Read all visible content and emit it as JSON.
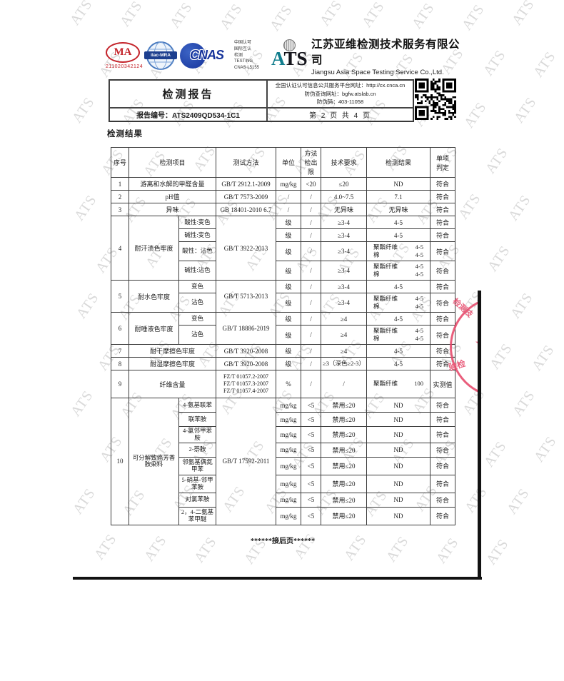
{
  "colors": {
    "stamp_red": "#e6486a",
    "cma_red": "#c4242b",
    "cnas_blue": "#16339b",
    "ats_teal": "#117d8d"
  },
  "header": {
    "cma_label": "MA",
    "cma_number": "211020342124",
    "ilac_label": "ilac-MRA",
    "cnas_label": "CNAS",
    "accreditation": "中国认可\n国际互认\n检测\nTESTING\nCNAS L5155",
    "ats_a": "A",
    "ats_ts": "TS",
    "company_cn": "江苏亚维检测技术服务有限公司",
    "company_en": "Jiangsu Asia Space Testing Service Co.,Ltd."
  },
  "report_box": {
    "title": "检测报告",
    "info_lines": "全国认证认可信息公共服务平台网址：http://cx.cnca.cn\n防伪查询网址：bgfw.atslab.cn\n防伪码：403-11058",
    "report_no_label": "报告编号：ATS2409QD534-1C1",
    "page_info": "第 2 页 共 4 页"
  },
  "section_title": "检测结果",
  "table": {
    "headers": {
      "no": "序号",
      "item": "检测项目",
      "method": "测试方法",
      "unit": "单位",
      "lod": "方法\n检出限",
      "req": "技术要求",
      "result": "检测结果",
      "verdict": "单项\n判定"
    },
    "rows": [
      {
        "no": "1",
        "item": "游离和水解的甲醛含量",
        "method": "GB/T 2912.1-2009",
        "unit": "mg/kg",
        "lod": "<20",
        "req": "≤20",
        "result": "ND",
        "verdict": "符合"
      },
      {
        "no": "2",
        "item": "pH值",
        "method": "GB/T 7573-2009",
        "unit": "/",
        "lod": "/",
        "req": "4.0~7.5",
        "result": "7.1",
        "verdict": "符合"
      },
      {
        "no": "3",
        "item": "异味",
        "method": "GB 18401-2010 6.7",
        "unit": "/",
        "lod": "/",
        "req": "无异味",
        "result": "无异味",
        "verdict": "符合"
      },
      {
        "no": "4",
        "item": "耐汗渍色牢度",
        "method": "GB/T 3922-2013",
        "subs": [
          {
            "name": "酸性:变色",
            "unit": "级",
            "lod": "/",
            "req": "≥3-4",
            "result": "4-5",
            "verdict": "符合"
          },
          {
            "name": "碱性:变色",
            "unit": "级",
            "lod": "/",
            "req": "≥3-4",
            "result": "4-5",
            "verdict": "符合"
          },
          {
            "name": "酸性：沾色",
            "unit": "级",
            "lod": "/",
            "req": "≥3-4",
            "rp": [
              [
                "聚酯纤维",
                "4-5"
              ],
              [
                "棉",
                "4-5"
              ]
            ],
            "verdict": "符合"
          },
          {
            "name": "碱性:沾色",
            "unit": "级",
            "lod": "/",
            "req": "≥3-4",
            "rp": [
              [
                "聚酯纤维",
                "4-5"
              ],
              [
                "棉",
                "4-5"
              ]
            ],
            "verdict": "符合"
          }
        ]
      },
      {
        "no": "5",
        "item": "耐水色牢度",
        "method": "GB/T 5713-2013",
        "subs": [
          {
            "name": "变色",
            "unit": "级",
            "lod": "/",
            "req": "≥3-4",
            "result": "4-5",
            "verdict": "符合"
          },
          {
            "name": "沾色",
            "unit": "级",
            "lod": "/",
            "req": "≥3-4",
            "rp": [
              [
                "聚酯纤维",
                "4-5"
              ],
              [
                "棉",
                "4-5"
              ]
            ],
            "verdict": "符合"
          }
        ]
      },
      {
        "no": "6",
        "item": "耐唾液色牢度",
        "method": "GB/T 18886-2019",
        "subs": [
          {
            "name": "变色",
            "unit": "级",
            "lod": "/",
            "req": "≥4",
            "result": "4-5",
            "verdict": "符合"
          },
          {
            "name": "沾色",
            "unit": "级",
            "lod": "/",
            "req": "≥4",
            "rp": [
              [
                "聚酯纤维",
                "4-5"
              ],
              [
                "棉",
                "4-5"
              ]
            ],
            "verdict": "符合"
          }
        ]
      },
      {
        "no": "7",
        "item": "耐干摩擦色牢度",
        "method": "GB/T 3920-2008",
        "unit": "级",
        "lod": "/",
        "req": "≥4",
        "result": "4-5",
        "verdict": "符合"
      },
      {
        "no": "8",
        "item": "耐湿摩擦色牢度",
        "method": "GB/T 3920-2008",
        "unit": "级",
        "lod": "/",
        "req": "≥3（深色≥2-3）",
        "result": "4-5",
        "verdict": "符合"
      },
      {
        "no": "9",
        "item": "纤维含量",
        "method": "FZ/T 01057.2-2007\nFZ/T 01057.3-2007\nFZ/T 01057.4-2007",
        "unit": "%",
        "lod": "/",
        "req": "/",
        "rp": [
          [
            "聚酯纤维",
            "100"
          ]
        ],
        "verdict": "实测值"
      },
      {
        "no": "10",
        "item": "可分解致癌芳香胺染料",
        "method": "GB/T 17592-2011",
        "subs": [
          {
            "name": "4-氨基联苯",
            "unit": "mg/kg",
            "lod": "<5",
            "req": "禁用≤20",
            "result": "ND",
            "verdict": "符合"
          },
          {
            "name": "联苯胺",
            "unit": "mg/kg",
            "lod": "<5",
            "req": "禁用≤20",
            "result": "ND",
            "verdict": "符合"
          },
          {
            "name": "4-氯邻甲苯胺",
            "unit": "mg/kg",
            "lod": "<5",
            "req": "禁用≤20",
            "result": "ND",
            "verdict": "符合"
          },
          {
            "name": "2-萘胺",
            "unit": "mg/kg",
            "lod": "<5",
            "req": "禁用≤20",
            "result": "ND",
            "verdict": "符合"
          },
          {
            "name": "邻氨基偶氮甲苯",
            "unit": "mg/kg",
            "lod": "<5",
            "req": "禁用≤20",
            "result": "ND",
            "verdict": "符合"
          },
          {
            "name": "5-硝基-邻甲苯胺",
            "unit": "mg/kg",
            "lod": "<5",
            "req": "禁用≤20",
            "result": "ND",
            "verdict": "符合"
          },
          {
            "name": "对氯苯胺",
            "unit": "mg/kg",
            "lod": "<5",
            "req": "禁用≤20",
            "result": "ND",
            "verdict": "符合"
          },
          {
            "name": "2，4-二氨基苯甲醚",
            "unit": "mg/kg",
            "lod": "<5",
            "req": "禁用≤20",
            "result": "ND",
            "verdict": "符合"
          }
        ]
      }
    ]
  },
  "footer_note": "******接后页******",
  "stamp": {
    "text_top": "检测技",
    "text_bottom": "验检",
    "star": "★"
  }
}
